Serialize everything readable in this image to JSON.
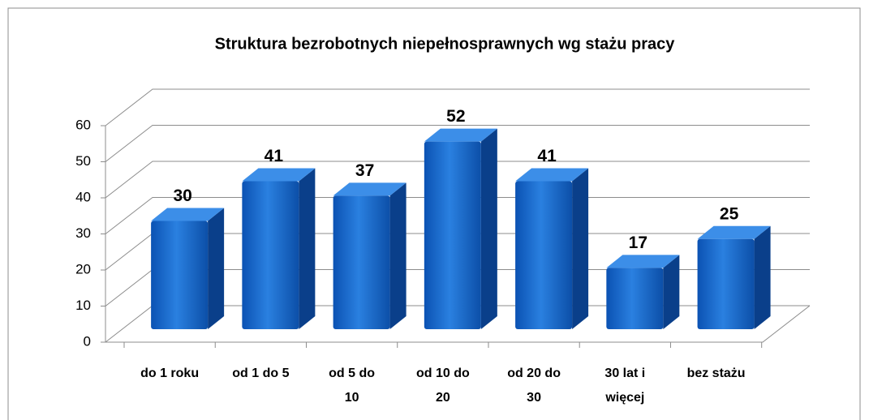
{
  "chart_data": {
    "type": "bar3d",
    "title": "Struktura bezrobotnych niepełnosprawnych wg stażu pracy",
    "categories": [
      "do 1 roku",
      "od 1 do 5",
      "od 5 do 10",
      "od 10 do 20",
      "od 20 do 30",
      "30 lat i więcej",
      "bez stażu"
    ],
    "values": [
      30,
      41,
      37,
      52,
      41,
      17,
      25
    ],
    "color": "#1f6fd1",
    "ylim": [
      0,
      60
    ],
    "yticks": [
      0,
      10,
      20,
      30,
      40,
      50,
      60
    ],
    "grid": true
  }
}
